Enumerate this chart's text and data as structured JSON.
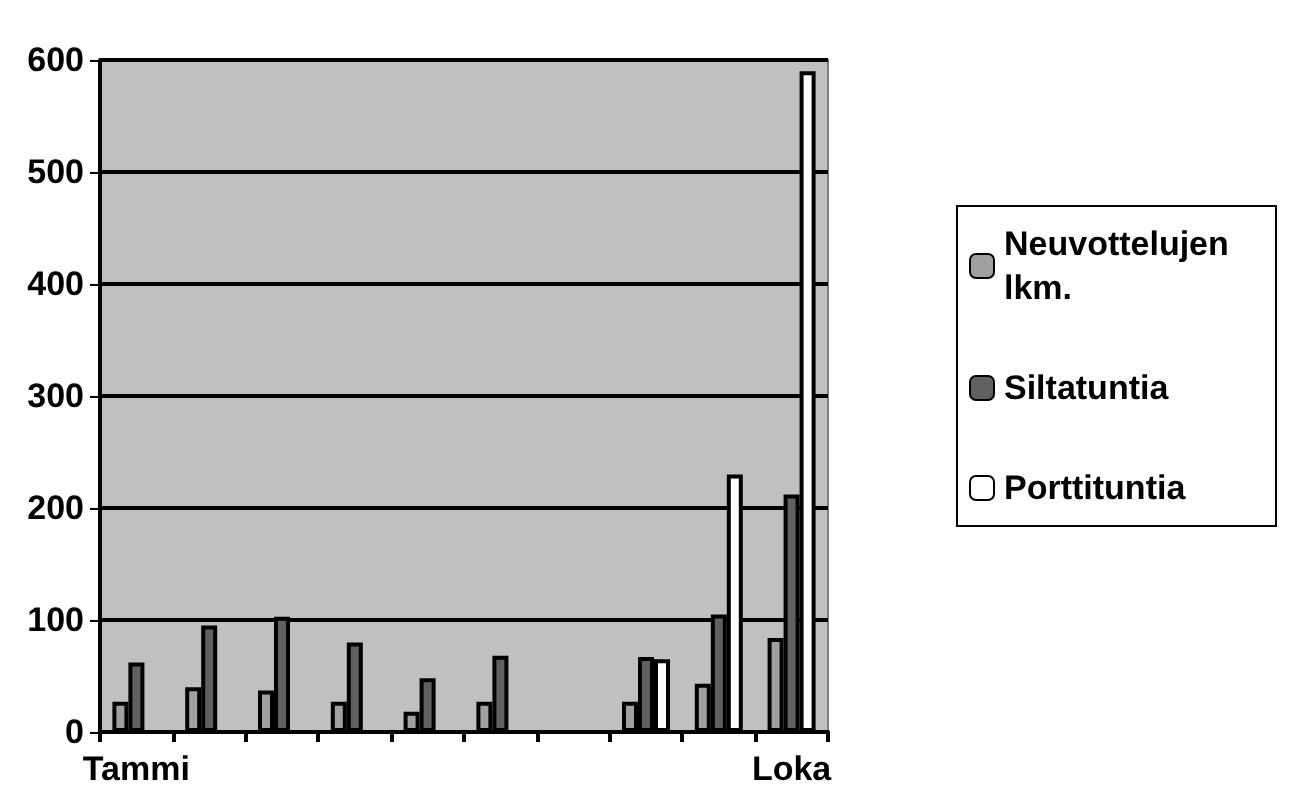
{
  "chart_data": {
    "type": "bar",
    "categories": [
      "Tammi",
      null,
      null,
      null,
      null,
      null,
      null,
      null,
      null,
      "Loka"
    ],
    "series": [
      {
        "name": "Neuvottelujen lkm.",
        "color": "#a0a0a0",
        "values": [
          27,
          40,
          37,
          27,
          18,
          27,
          null,
          27,
          43,
          84
        ]
      },
      {
        "name": "Siltatuntia",
        "color": "#606060",
        "values": [
          62,
          95,
          103,
          80,
          48,
          68,
          null,
          67,
          105,
          212
        ]
      },
      {
        "name": "Porttituntia",
        "color": "#ffffff",
        "values": [
          null,
          null,
          null,
          null,
          null,
          null,
          null,
          65,
          230,
          590
        ]
      }
    ],
    "ylim": [
      0,
      600
    ],
    "yticks": [
      0,
      100,
      200,
      300,
      400,
      500,
      600
    ],
    "grid": "y",
    "legend": "right"
  }
}
